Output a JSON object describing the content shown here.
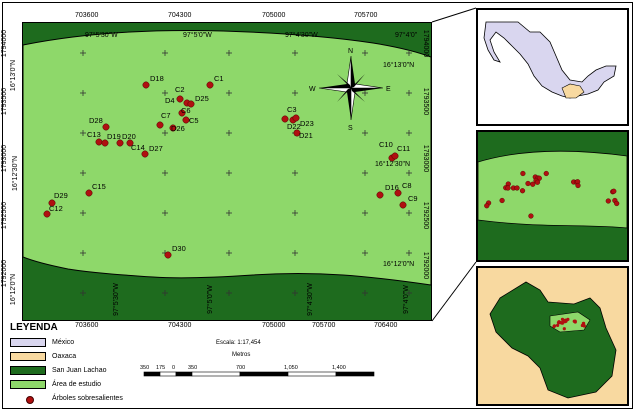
{
  "map": {
    "x_top_labels": [
      "703600",
      "704300",
      "705000",
      "705700",
      "706400"
    ],
    "x_bottom_labels": [
      "703600",
      "704300",
      "705000",
      "705700",
      "706400"
    ],
    "y_left_labels": [
      "1794000",
      "1793500",
      "1793000",
      "1792500",
      "1792000"
    ],
    "y_right_labels": [
      "1794000",
      "1793500",
      "1793000",
      "1792500",
      "1792000"
    ],
    "lon_top_labels": [
      "97°5'30\"W",
      "97°5'0\"W",
      "97°4'30\"W",
      "97°4'0\""
    ],
    "lon_bottom_labels": [
      "97°5'30\"W",
      "97°5'0\"W",
      "97°4'30\"W",
      "97°4'0\"W"
    ],
    "lat_left_labels": [
      "16°13'0\"N",
      "16°12'30\"N",
      "16°12'0\"N"
    ],
    "lat_right_labels": [
      "16°13'0\"N",
      "16°12'30\"N",
      "16°12'0\"N"
    ],
    "north_arrow": {
      "n": "N",
      "s": "S",
      "e": "E",
      "w": "W"
    },
    "trees": [
      {
        "label": "D18"
      },
      {
        "label": "C1"
      },
      {
        "label": "C2"
      },
      {
        "label": "D4"
      },
      {
        "label": "D25"
      },
      {
        "label": "C6"
      },
      {
        "label": "C7"
      },
      {
        "label": "C5"
      },
      {
        "label": "D26"
      },
      {
        "label": "D28"
      },
      {
        "label": "C13"
      },
      {
        "label": "D19"
      },
      {
        "label": "D20"
      },
      {
        "label": "C14"
      },
      {
        "label": "D27"
      },
      {
        "label": "C3"
      },
      {
        "label": "D22"
      },
      {
        "label": "D23"
      },
      {
        "label": "D21"
      },
      {
        "label": "C10"
      },
      {
        "label": "C11"
      },
      {
        "label": "D16"
      },
      {
        "label": "C8"
      },
      {
        "label": "C9"
      },
      {
        "label": "D29"
      },
      {
        "label": "C12"
      },
      {
        "label": "C15"
      },
      {
        "label": "D30"
      }
    ]
  },
  "legend": {
    "title": "LEYENDA",
    "items": [
      {
        "label": "México",
        "color": "#d9d6ef"
      },
      {
        "label": "Oaxaca",
        "color": "#f8d9a0"
      },
      {
        "label": "San Juan Lachao",
        "color": "#1e6b1e"
      },
      {
        "label": "Área de estudio",
        "color": "#8ed86a"
      }
    ],
    "trees_label": "Árboles sobresalientes",
    "tree_color": "#b01010"
  },
  "scale": {
    "title": "Escala: 1:17,454",
    "unit": "Metros",
    "ticks": [
      "350",
      "175",
      "0",
      "350",
      "700",
      "1,050",
      "1,400"
    ]
  },
  "colors": {
    "outer_green": "#1e6b1e",
    "study_green": "#8ed86a",
    "mexico": "#d9d6ef",
    "oaxaca": "#f8d9a0",
    "outline": "#000000"
  }
}
